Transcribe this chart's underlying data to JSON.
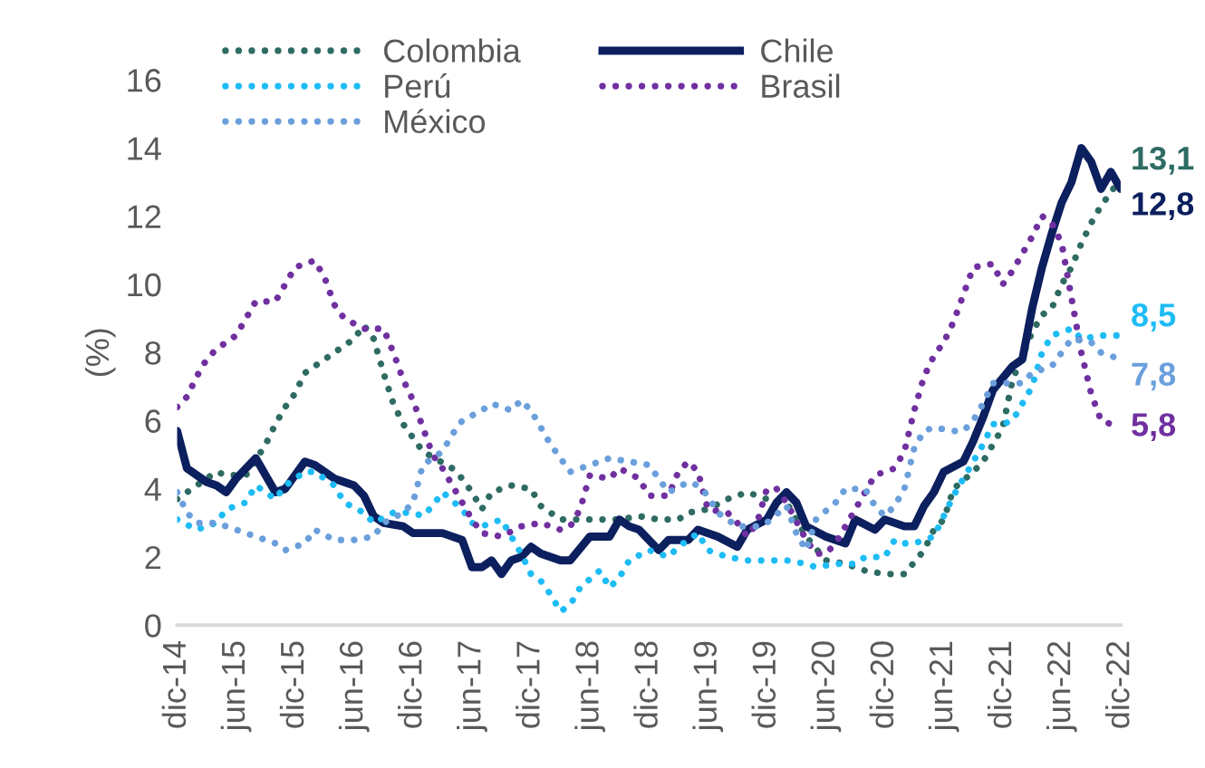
{
  "chart_data": {
    "type": "line",
    "ylabel": "(%)",
    "ylim": [
      0,
      16
    ],
    "yticks": [
      0,
      2,
      4,
      6,
      8,
      10,
      12,
      14,
      16
    ],
    "xlim": [
      "2014-12",
      "2022-12"
    ],
    "xticks": [
      {
        "value": "2014-12",
        "label": "dic-14"
      },
      {
        "value": "2015-06",
        "label": "jun-15"
      },
      {
        "value": "2015-12",
        "label": "dic-15"
      },
      {
        "value": "2016-06",
        "label": "jun-16"
      },
      {
        "value": "2016-12",
        "label": "dic-16"
      },
      {
        "value": "2017-06",
        "label": "jun-17"
      },
      {
        "value": "2017-12",
        "label": "dic-17"
      },
      {
        "value": "2018-06",
        "label": "jun-18"
      },
      {
        "value": "2018-12",
        "label": "dic-18"
      },
      {
        "value": "2019-06",
        "label": "jun-19"
      },
      {
        "value": "2019-12",
        "label": "dic-19"
      },
      {
        "value": "2020-06",
        "label": "jun-20"
      },
      {
        "value": "2020-12",
        "label": "dic-20"
      },
      {
        "value": "2021-06",
        "label": "jun-21"
      },
      {
        "value": "2021-12",
        "label": "dic-21"
      },
      {
        "value": "2022-06",
        "label": "jun-22"
      },
      {
        "value": "2022-12",
        "label": "dic-22"
      }
    ],
    "grid": false,
    "legend": "top",
    "marker": "none",
    "series": [
      {
        "name": "Colombia",
        "color": "#2e6b63",
        "line_style": "dotted",
        "x": [
          "2014-12",
          "2015-02",
          "2015-04",
          "2015-05",
          "2015-07",
          "2015-09",
          "2015-10",
          "2015-11",
          "2015-12",
          "2016-01",
          "2016-03",
          "2016-04",
          "2016-06",
          "2016-07",
          "2016-08",
          "2016-09",
          "2016-10",
          "2016-11",
          "2017-01",
          "2017-04",
          "2017-05",
          "2017-06",
          "2017-07",
          "2017-08",
          "2017-10",
          "2017-12",
          "2018-01",
          "2018-03",
          "2018-05",
          "2018-07",
          "2018-09",
          "2018-11",
          "2019-01",
          "2019-03",
          "2019-04",
          "2019-06",
          "2019-08",
          "2019-10",
          "2019-12",
          "2020-02",
          "2020-04",
          "2020-06",
          "2020-08",
          "2020-10",
          "2020-12",
          "2021-02",
          "2021-04",
          "2021-05",
          "2021-06",
          "2021-07",
          "2021-09",
          "2021-10",
          "2021-11",
          "2021-12",
          "2022-01",
          "2022-03",
          "2022-04",
          "2022-05",
          "2022-06",
          "2022-07",
          "2022-08",
          "2022-09",
          "2022-10",
          "2022-12"
        ],
        "values": [
          3.7,
          4.1,
          4.5,
          4.4,
          4.4,
          5.3,
          5.9,
          6.4,
          6.8,
          7.4,
          7.8,
          8.0,
          8.4,
          8.8,
          8.4,
          7.4,
          6.5,
          5.9,
          5.1,
          4.6,
          4.3,
          3.9,
          3.4,
          3.9,
          4.1,
          4.0,
          3.5,
          3.1,
          3.1,
          3.1,
          3.1,
          3.2,
          3.1,
          3.1,
          3.3,
          3.4,
          3.7,
          3.9,
          3.7,
          3.6,
          2.6,
          1.9,
          1.8,
          1.6,
          1.5,
          1.5,
          2.2,
          2.8,
          3.1,
          4.0,
          4.5,
          4.8,
          5.3,
          5.8,
          7.2,
          8.6,
          9.1,
          9.3,
          10.0,
          10.5,
          11.2,
          11.8,
          12.3,
          13.1
        ]
      },
      {
        "name": "Chile",
        "color": "#0c1f5e",
        "line_style": "solid",
        "x": [
          "2014-12",
          "2015-01",
          "2015-03",
          "2015-04",
          "2015-05",
          "2015-06",
          "2015-08",
          "2015-09",
          "2015-10",
          "2015-11",
          "2016-01",
          "2016-02",
          "2016-04",
          "2016-05",
          "2016-06",
          "2016-07",
          "2016-08",
          "2016-09",
          "2016-11",
          "2016-12",
          "2017-03",
          "2017-05",
          "2017-06",
          "2017-07",
          "2017-08",
          "2017-09",
          "2017-10",
          "2017-11",
          "2017-12",
          "2018-01",
          "2018-03",
          "2018-04",
          "2018-06",
          "2018-08",
          "2018-09",
          "2018-10",
          "2018-11",
          "2019-01",
          "2019-02",
          "2019-04",
          "2019-05",
          "2019-07",
          "2019-09",
          "2019-10",
          "2019-12",
          "2020-01",
          "2020-02",
          "2020-03",
          "2020-04",
          "2020-06",
          "2020-08",
          "2020-09",
          "2020-11",
          "2020-12",
          "2021-02",
          "2021-03",
          "2021-04",
          "2021-05",
          "2021-06",
          "2021-08",
          "2021-09",
          "2021-10",
          "2021-11",
          "2022-01",
          "2022-02",
          "2022-03",
          "2022-04",
          "2022-05",
          "2022-06",
          "2022-07",
          "2022-08",
          "2022-09",
          "2022-10",
          "2022-11",
          "2022-12"
        ],
        "values": [
          5.7,
          4.6,
          4.2,
          4.1,
          3.9,
          4.3,
          4.9,
          4.4,
          3.9,
          4.0,
          4.8,
          4.7,
          4.3,
          4.2,
          4.1,
          3.8,
          3.2,
          3.0,
          2.9,
          2.7,
          2.7,
          2.5,
          1.7,
          1.7,
          1.9,
          1.5,
          1.9,
          2.0,
          2.3,
          2.1,
          1.9,
          1.9,
          2.6,
          2.6,
          3.1,
          2.9,
          2.8,
          2.2,
          2.5,
          2.5,
          2.8,
          2.6,
          2.3,
          2.8,
          3.1,
          3.6,
          3.9,
          3.6,
          2.9,
          2.6,
          2.4,
          3.1,
          2.8,
          3.1,
          2.9,
          2.9,
          3.5,
          3.9,
          4.5,
          4.8,
          5.4,
          6.1,
          6.9,
          7.6,
          7.8,
          9.3,
          10.5,
          11.5,
          12.4,
          13.0,
          14.0,
          13.6,
          12.8,
          13.3,
          12.8
        ]
      },
      {
        "name": "Perú",
        "color": "#1ebcf5",
        "line_style": "dotted",
        "x": [
          "2014-12",
          "2015-02",
          "2015-04",
          "2015-05",
          "2015-07",
          "2015-08",
          "2015-10",
          "2015-11",
          "2016-01",
          "2016-02",
          "2016-04",
          "2016-05",
          "2016-07",
          "2016-08",
          "2016-10",
          "2016-12",
          "2017-01",
          "2017-02",
          "2017-03",
          "2017-05",
          "2017-06",
          "2017-07",
          "2017-09",
          "2017-10",
          "2017-11",
          "2017-12",
          "2018-01",
          "2018-02",
          "2018-03",
          "2018-04",
          "2018-05",
          "2018-07",
          "2018-08",
          "2018-09",
          "2018-10",
          "2018-12",
          "2019-02",
          "2019-03",
          "2019-05",
          "2019-06",
          "2019-08",
          "2019-10",
          "2019-12",
          "2020-02",
          "2020-04",
          "2020-05",
          "2020-07",
          "2020-09",
          "2020-10",
          "2020-12",
          "2021-01",
          "2021-02",
          "2021-03",
          "2021-05",
          "2021-06",
          "2021-07",
          "2021-08",
          "2021-09",
          "2021-10",
          "2021-11",
          "2021-12",
          "2022-01",
          "2022-02",
          "2022-03",
          "2022-04",
          "2022-05",
          "2022-07",
          "2022-08",
          "2022-10",
          "2022-12"
        ],
        "values": [
          3.1,
          2.8,
          3.0,
          3.4,
          3.6,
          4.1,
          3.7,
          4.1,
          4.5,
          4.5,
          4.1,
          3.6,
          3.3,
          3.0,
          3.3,
          3.3,
          3.2,
          3.5,
          3.9,
          3.4,
          3.0,
          2.9,
          3.1,
          2.6,
          2.1,
          1.5,
          1.3,
          0.9,
          0.4,
          0.6,
          1.1,
          1.6,
          1.1,
          1.4,
          1.9,
          2.2,
          2.0,
          2.3,
          2.7,
          2.2,
          2.0,
          1.9,
          1.9,
          1.9,
          1.8,
          1.7,
          1.8,
          1.8,
          2.0,
          2.0,
          2.5,
          2.4,
          2.4,
          2.6,
          3.2,
          3.8,
          4.3,
          4.8,
          5.3,
          5.9,
          5.9,
          6.0,
          6.5,
          7.0,
          8.0,
          8.5,
          8.7,
          8.4,
          8.5,
          8.5
        ]
      },
      {
        "name": "Brasil",
        "color": "#7030a0",
        "line_style": "dotted",
        "x": [
          "2014-12",
          "2015-01",
          "2015-02",
          "2015-03",
          "2015-04",
          "2015-06",
          "2015-07",
          "2015-08",
          "2015-10",
          "2015-11",
          "2015-12",
          "2016-02",
          "2016-03",
          "2016-04",
          "2016-05",
          "2016-07",
          "2016-09",
          "2016-10",
          "2016-11",
          "2016-12",
          "2017-01",
          "2017-02",
          "2017-03",
          "2017-04",
          "2017-05",
          "2017-06",
          "2017-07",
          "2017-09",
          "2017-11",
          "2018-01",
          "2018-03",
          "2018-04",
          "2018-05",
          "2018-06",
          "2018-08",
          "2018-09",
          "2018-11",
          "2018-12",
          "2019-02",
          "2019-03",
          "2019-04",
          "2019-05",
          "2019-06",
          "2019-08",
          "2019-09",
          "2019-10",
          "2019-11",
          "2019-12",
          "2020-01",
          "2020-02",
          "2020-04",
          "2020-05",
          "2020-06",
          "2020-07",
          "2020-09",
          "2020-11",
          "2021-01",
          "2021-02",
          "2021-03",
          "2021-04",
          "2021-05",
          "2021-06",
          "2021-07",
          "2021-08",
          "2021-09",
          "2021-11",
          "2021-12",
          "2022-01",
          "2022-02",
          "2022-03",
          "2022-04",
          "2022-05",
          "2022-06",
          "2022-07",
          "2022-08",
          "2022-09",
          "2022-10",
          "2022-12"
        ],
        "values": [
          6.4,
          6.7,
          7.3,
          7.8,
          8.1,
          8.5,
          9.0,
          9.5,
          9.5,
          10.0,
          10.5,
          10.7,
          10.2,
          9.4,
          9.0,
          8.7,
          8.7,
          8.0,
          7.2,
          6.6,
          5.8,
          5.0,
          4.6,
          4.1,
          3.6,
          3.1,
          2.7,
          2.6,
          2.9,
          3.0,
          2.8,
          2.9,
          3.4,
          4.4,
          4.3,
          4.6,
          4.3,
          3.8,
          3.8,
          4.5,
          4.8,
          4.5,
          3.4,
          3.3,
          3.0,
          2.6,
          3.0,
          4.0,
          4.0,
          3.6,
          2.5,
          2.1,
          2.1,
          2.4,
          3.4,
          4.4,
          4.6,
          5.1,
          6.3,
          7.3,
          7.9,
          8.3,
          8.9,
          9.7,
          10.5,
          10.6,
          10.0,
          10.4,
          10.9,
          11.4,
          12.0,
          11.8,
          11.2,
          9.6,
          8.0,
          6.8,
          6.0,
          5.8
        ]
      },
      {
        "name": "México",
        "color": "#6a9fdc",
        "line_style": "dotted",
        "x": [
          "2014-12",
          "2015-01",
          "2015-02",
          "2015-04",
          "2015-06",
          "2015-08",
          "2015-10",
          "2015-11",
          "2016-01",
          "2016-02",
          "2016-04",
          "2016-06",
          "2016-08",
          "2016-09",
          "2016-11",
          "2016-12",
          "2017-01",
          "2017-03",
          "2017-04",
          "2017-05",
          "2017-07",
          "2017-08",
          "2017-10",
          "2017-11",
          "2017-12",
          "2018-01",
          "2018-02",
          "2018-03",
          "2018-04",
          "2018-06",
          "2018-08",
          "2018-10",
          "2018-12",
          "2019-01",
          "2019-02",
          "2019-04",
          "2019-05",
          "2019-06",
          "2019-07",
          "2019-09",
          "2019-11",
          "2019-12",
          "2020-02",
          "2020-03",
          "2020-04",
          "2020-05",
          "2020-07",
          "2020-08",
          "2020-10",
          "2020-11",
          "2020-12",
          "2021-01",
          "2021-02",
          "2021-03",
          "2021-04",
          "2021-05",
          "2021-07",
          "2021-08",
          "2021-09",
          "2021-10",
          "2021-11",
          "2021-12",
          "2022-02",
          "2022-03",
          "2022-05",
          "2022-06",
          "2022-07",
          "2022-09",
          "2022-10",
          "2022-12"
        ],
        "values": [
          3.9,
          3.3,
          3.0,
          3.0,
          2.8,
          2.6,
          2.4,
          2.2,
          2.4,
          2.8,
          2.5,
          2.5,
          2.6,
          3.0,
          3.3,
          3.6,
          4.7,
          5.1,
          5.6,
          6.0,
          6.3,
          6.5,
          6.3,
          6.6,
          6.3,
          5.8,
          5.3,
          4.9,
          4.5,
          4.7,
          4.9,
          4.8,
          4.7,
          4.3,
          3.9,
          4.2,
          4.1,
          3.8,
          3.3,
          2.9,
          2.9,
          3.0,
          3.5,
          2.7,
          2.2,
          3.1,
          3.6,
          4.0,
          4.0,
          3.5,
          3.2,
          3.5,
          4.0,
          5.2,
          5.7,
          5.8,
          5.7,
          5.7,
          6.0,
          6.5,
          7.1,
          7.1,
          7.1,
          7.4,
          7.6,
          8.0,
          8.4,
          8.3,
          8.0,
          7.8
        ]
      }
    ],
    "annotations": [
      {
        "text": "13,1",
        "x": "2022-12",
        "y": 13.1
      },
      {
        "text": "12,8",
        "x": "2022-12",
        "y": 12.8
      },
      {
        "text": "8,5",
        "x": "2022-12",
        "y": 8.5
      },
      {
        "text": "5,8",
        "x": "2022-12",
        "y": 5.8
      },
      {
        "text": "7,8",
        "x": "2022-12",
        "y": 7.8
      }
    ]
  }
}
